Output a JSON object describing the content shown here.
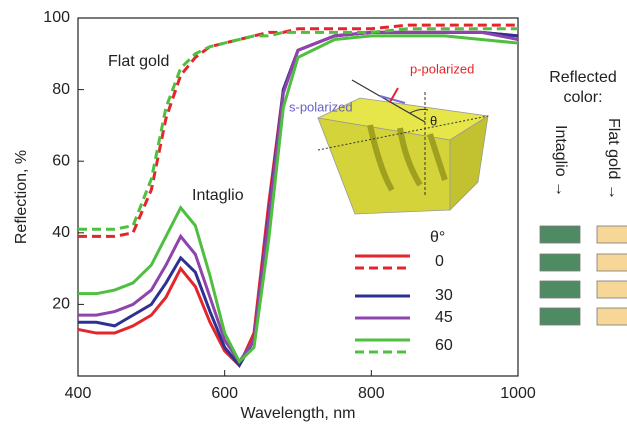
{
  "chart_data": {
    "type": "line",
    "x_label": "Wavelength, nm",
    "y_label": "Reflection, %",
    "xlim": [
      400,
      1000
    ],
    "xticks": [
      400,
      600,
      800,
      1000
    ],
    "ylim": [
      0,
      100
    ],
    "yticks": [
      20,
      40,
      60,
      80,
      100
    ],
    "x": [
      400,
      425,
      450,
      475,
      500,
      520,
      540,
      560,
      580,
      600,
      620,
      640,
      660,
      680,
      700,
      750,
      800,
      850,
      900,
      950,
      1000
    ],
    "legend_title": "θ°",
    "series": [
      {
        "name": "0",
        "color": "#e3262b",
        "values": [
          13,
          12,
          12,
          14,
          17,
          22,
          30,
          25,
          15,
          7,
          3,
          12,
          48,
          80,
          91,
          95,
          96,
          96,
          96,
          96,
          95
        ],
        "flat_values": [
          39,
          39,
          39,
          40,
          52,
          72,
          84,
          89,
          92,
          93,
          94,
          95,
          96,
          96,
          97,
          97,
          97,
          98,
          98,
          98,
          98
        ]
      },
      {
        "name": "30",
        "color": "#2e3192",
        "values": [
          15,
          15,
          14,
          17,
          20,
          26,
          33,
          29,
          18,
          8,
          3,
          10,
          45,
          80,
          91,
          95,
          96,
          96,
          96,
          96,
          95
        ]
      },
      {
        "name": "45",
        "color": "#8e44ad",
        "values": [
          17,
          17,
          18,
          20,
          24,
          31,
          39,
          34,
          22,
          10,
          4,
          10,
          44,
          79,
          91,
          95,
          96,
          96,
          96,
          96,
          94
        ]
      },
      {
        "name": "60",
        "color": "#4fbf3f",
        "values": [
          23,
          23,
          24,
          26,
          31,
          39,
          47,
          42,
          28,
          12,
          4,
          8,
          38,
          75,
          89,
          94,
          95,
          95,
          95,
          94,
          93
        ],
        "flat_values": [
          41,
          41,
          41,
          42,
          55,
          75,
          86,
          90,
          92,
          93,
          94,
          95,
          95,
          96,
          96,
          96,
          96,
          97,
          97,
          97,
          97
        ]
      }
    ],
    "annotations": {
      "flat_gold": "Flat gold",
      "intaglio": "Intaglio"
    },
    "inset": {
      "p": "p-polarized",
      "s": "s-polarized",
      "theta": "θ"
    },
    "side_panel": {
      "title_line1": "Reflected",
      "title_line2": "color:",
      "intaglio": "Intaglio →",
      "flat_gold": "Flat gold →"
    }
  }
}
